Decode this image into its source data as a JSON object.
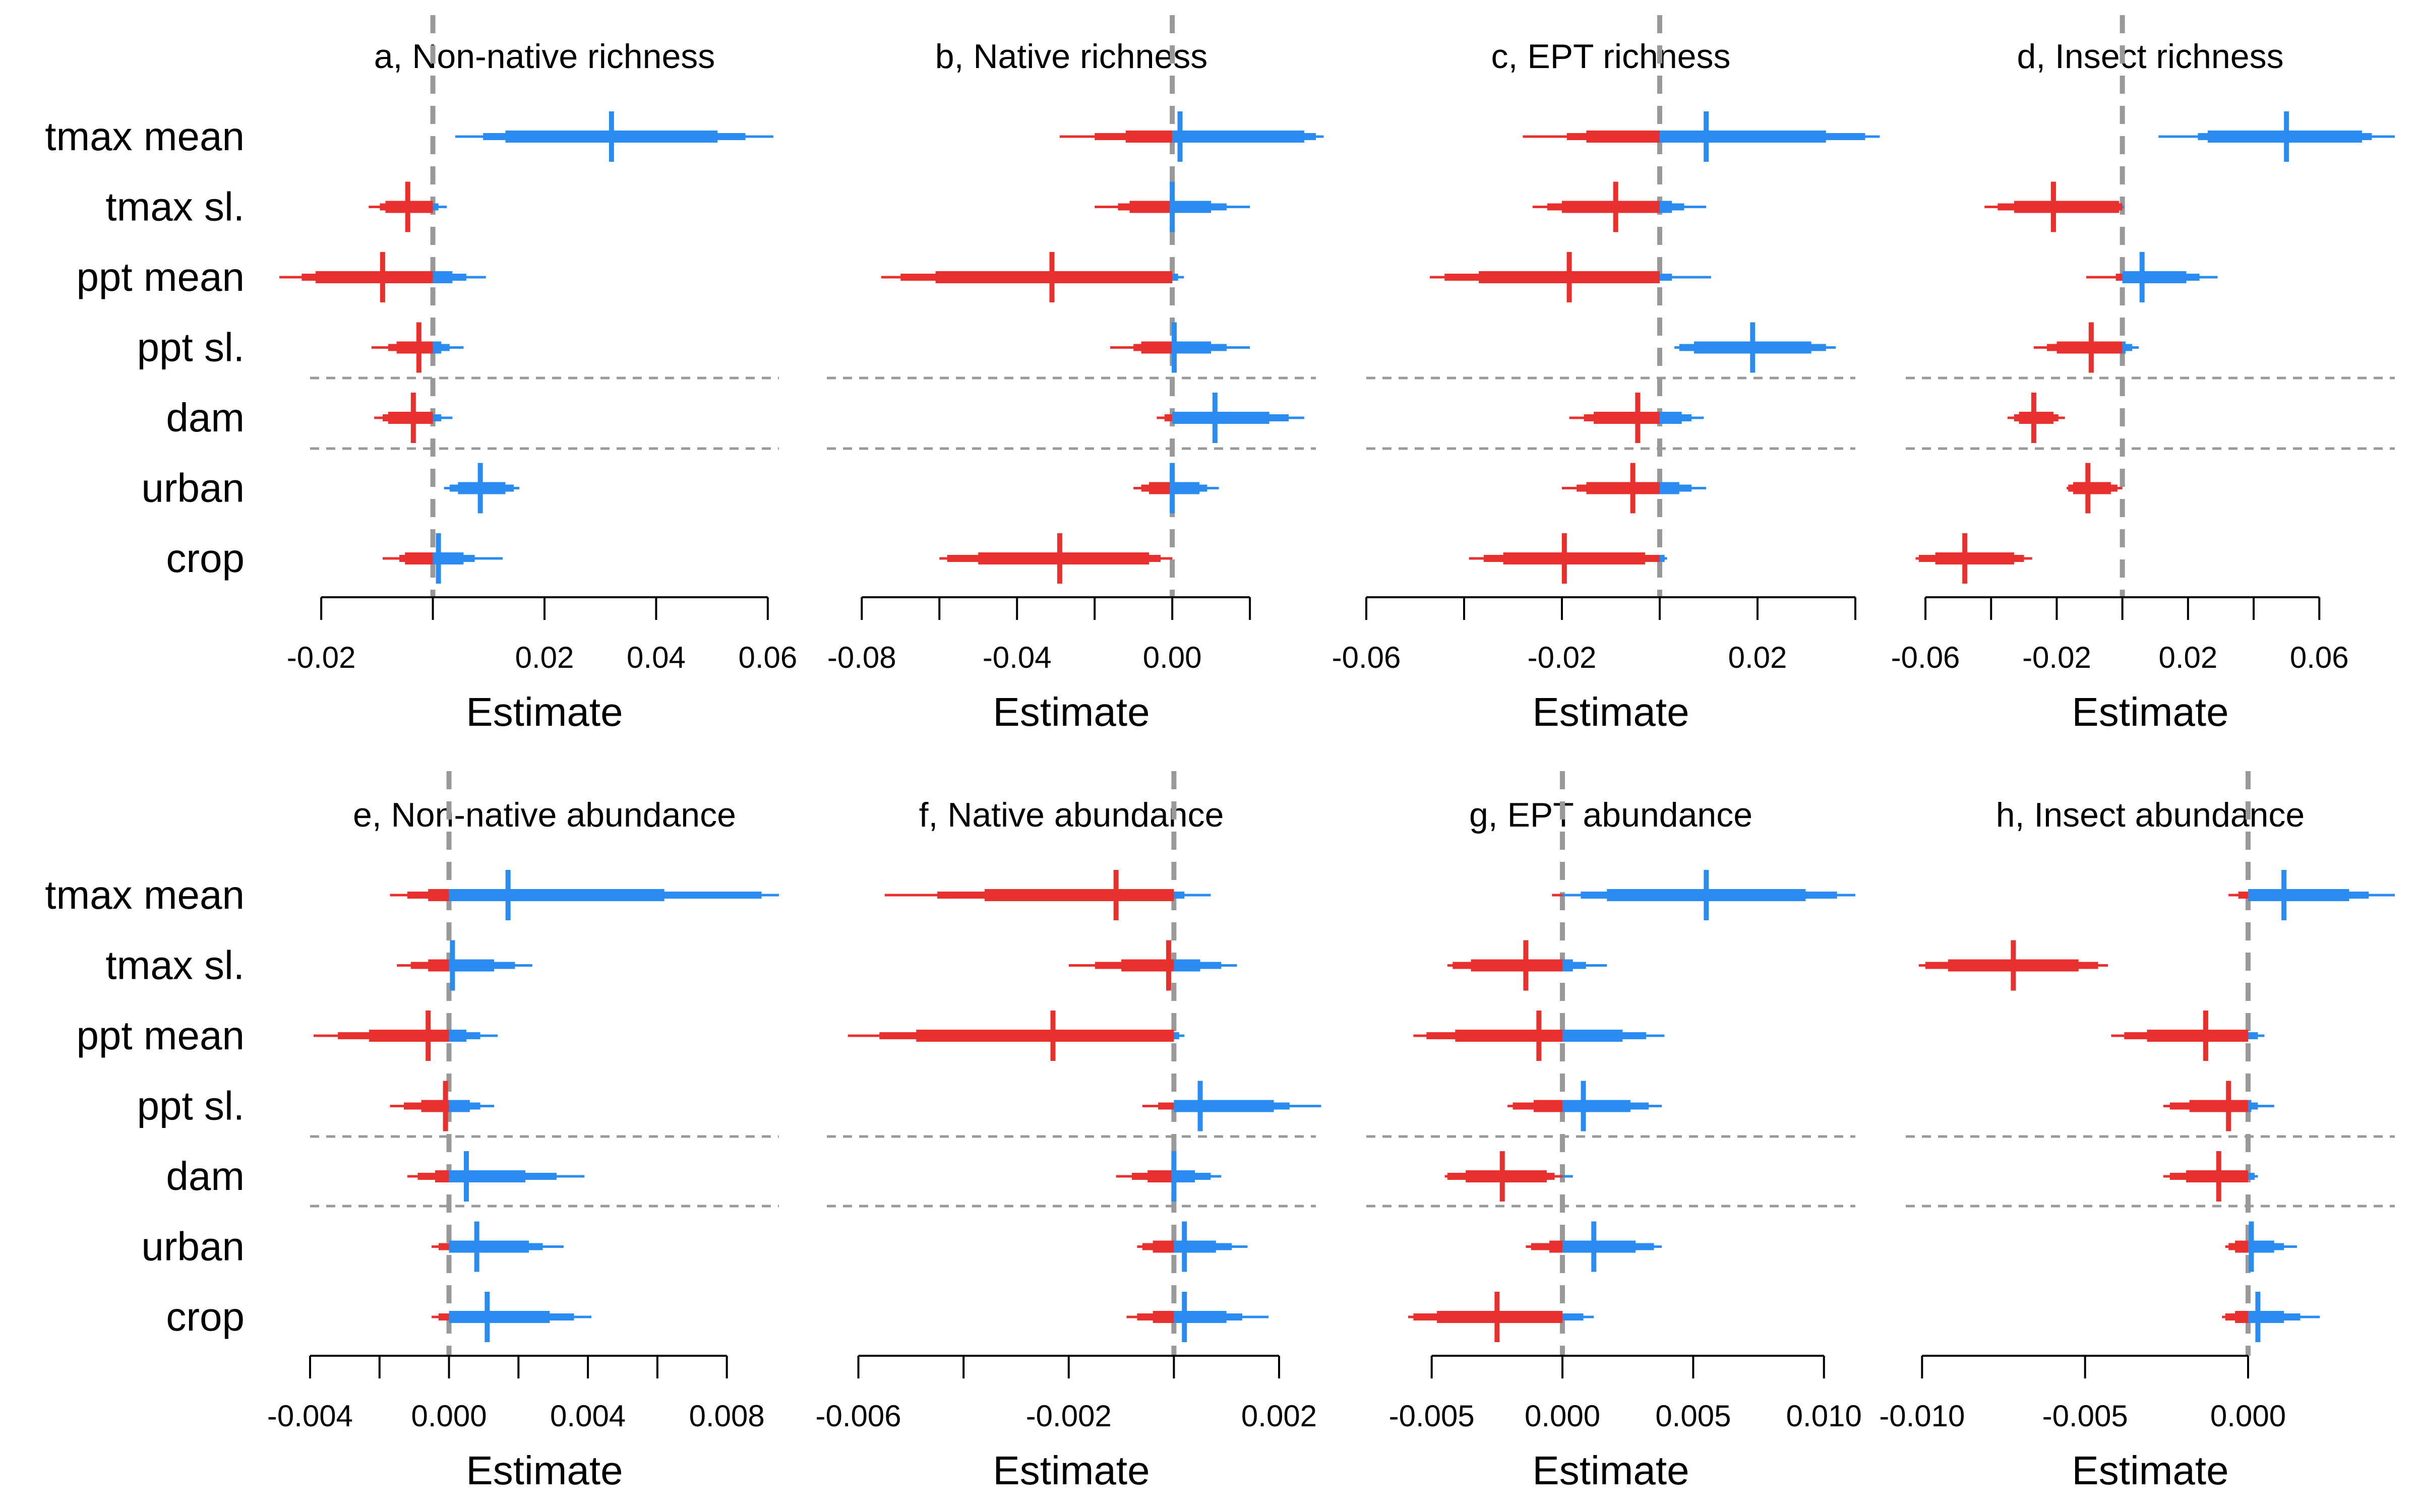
{
  "colors": {
    "negative": "#E8302E",
    "positive": "#2A8CF0",
    "zero_line": "#999999",
    "separator": "#999999",
    "axis": "#000000"
  },
  "chart_data": [
    {
      "type": "interval",
      "title": "a, Non-native richness",
      "xlabel": "Estimate",
      "xlim": [
        -0.022,
        0.062
      ],
      "ticks": [
        -0.02,
        0,
        0.02,
        0.04,
        0.06
      ],
      "tick_labels": [
        "-0.02",
        "",
        "0.02",
        "0.04",
        "0.06"
      ],
      "categories": [
        "tmax mean",
        "tmax sl.",
        "ppt mean",
        "ppt sl.",
        "dam",
        "urban",
        "crop"
      ],
      "estimates": [
        {
          "median": 0.032,
          "inner": [
            0.013,
            0.051
          ],
          "mid": [
            0.009,
            0.056
          ],
          "outer": [
            0.004,
            0.061
          ]
        },
        {
          "median": -0.0045,
          "inner": [
            -0.0085,
            0.0
          ],
          "mid": [
            -0.0095,
            0.001
          ],
          "outer": [
            -0.0115,
            0.0025
          ]
        },
        {
          "median": -0.009,
          "inner": [
            -0.021,
            0.0035
          ],
          "mid": [
            -0.0235,
            0.006
          ],
          "outer": [
            -0.0275,
            0.0095
          ]
        },
        {
          "median": -0.0025,
          "inner": [
            -0.0065,
            0.0015
          ],
          "mid": [
            -0.008,
            0.003
          ],
          "outer": [
            -0.011,
            0.0055
          ]
        },
        {
          "median": -0.0035,
          "inner": [
            -0.008,
            0.0
          ],
          "mid": [
            -0.009,
            0.0015
          ],
          "outer": [
            -0.0105,
            0.0035
          ]
        },
        {
          "median": 0.0085,
          "inner": [
            0.0045,
            0.013
          ],
          "mid": [
            0.003,
            0.0145
          ],
          "outer": [
            0.002,
            0.0155
          ]
        },
        {
          "median": 0.001,
          "inner": [
            -0.005,
            0.0055
          ],
          "mid": [
            -0.006,
            0.0075
          ],
          "outer": [
            -0.009,
            0.0125
          ]
        }
      ]
    },
    {
      "type": "interval",
      "title": "b, Native richness",
      "xlabel": "Estimate",
      "xlim": [
        -0.089,
        0.037
      ],
      "ticks": [
        -0.08,
        -0.06,
        -0.04,
        -0.02,
        0,
        0.02
      ],
      "tick_labels": [
        "-0.08",
        "",
        "-0.04",
        "",
        "0.00",
        ""
      ],
      "categories": [
        "tmax mean",
        "tmax sl.",
        "ppt mean",
        "ppt sl.",
        "dam",
        "urban",
        "crop"
      ],
      "estimates": [
        {
          "median": 0.002,
          "inner": [
            -0.012,
            0.034
          ],
          "mid": [
            -0.02,
            0.037
          ],
          "outer": [
            -0.029,
            0.039
          ]
        },
        {
          "median": 0.0,
          "inner": [
            -0.011,
            0.01
          ],
          "mid": [
            -0.014,
            0.014
          ],
          "outer": [
            -0.02,
            0.02
          ]
        },
        {
          "median": -0.031,
          "inner": [
            -0.061,
            0.0
          ],
          "mid": [
            -0.07,
            0.0015
          ],
          "outer": [
            -0.075,
            0.003
          ]
        },
        {
          "median": 0.0005,
          "inner": [
            -0.008,
            0.01
          ],
          "mid": [
            -0.01,
            0.014
          ],
          "outer": [
            -0.016,
            0.02
          ]
        },
        {
          "median": 0.011,
          "inner": [
            0.0,
            0.025
          ],
          "mid": [
            -0.002,
            0.03
          ],
          "outer": [
            -0.004,
            0.034
          ]
        },
        {
          "median": 0.0,
          "inner": [
            -0.006,
            0.007
          ],
          "mid": [
            -0.008,
            0.009
          ],
          "outer": [
            -0.01,
            0.012
          ]
        },
        {
          "median": -0.029,
          "inner": [
            -0.05,
            -0.006
          ],
          "mid": [
            -0.058,
            -0.003
          ],
          "outer": [
            -0.06,
            0.0
          ]
        }
      ]
    },
    {
      "type": "interval",
      "title": "c, EPT richness",
      "xlabel": "Estimate",
      "xlim": [
        -0.06,
        0.04
      ],
      "ticks": [
        -0.06,
        -0.04,
        -0.02,
        0,
        0.02,
        0.04
      ],
      "tick_labels": [
        "-0.06",
        "",
        "-0.02",
        "",
        "0.02",
        ""
      ],
      "categories": [
        "tmax mean",
        "tmax sl.",
        "ppt mean",
        "ppt sl.",
        "dam",
        "urban",
        "crop"
      ],
      "estimates": [
        {
          "median": 0.0095,
          "inner": [
            -0.015,
            0.034
          ],
          "mid": [
            -0.019,
            0.042
          ],
          "outer": [
            -0.028,
            0.045
          ]
        },
        {
          "median": -0.009,
          "inner": [
            -0.02,
            0.0025
          ],
          "mid": [
            -0.023,
            0.005
          ],
          "outer": [
            -0.026,
            0.0095
          ]
        },
        {
          "median": -0.0185,
          "inner": [
            -0.037,
            0.0
          ],
          "mid": [
            -0.044,
            0.0025
          ],
          "outer": [
            -0.047,
            0.0105
          ]
        },
        {
          "median": 0.019,
          "inner": [
            0.007,
            0.031
          ],
          "mid": [
            0.004,
            0.034
          ],
          "outer": [
            0.003,
            0.036
          ]
        },
        {
          "median": -0.0045,
          "inner": [
            -0.0135,
            0.0045
          ],
          "mid": [
            -0.0155,
            0.0065
          ],
          "outer": [
            -0.0185,
            0.009
          ]
        },
        {
          "median": -0.0055,
          "inner": [
            -0.015,
            0.004
          ],
          "mid": [
            -0.017,
            0.0065
          ],
          "outer": [
            -0.02,
            0.0095
          ]
        },
        {
          "median": -0.0195,
          "inner": [
            -0.032,
            -0.003
          ],
          "mid": [
            -0.036,
            0.001
          ],
          "outer": [
            -0.039,
            0.0015
          ]
        }
      ]
    },
    {
      "type": "interval",
      "title": "d, Insect richness",
      "xlabel": "Estimate",
      "xlim": [
        -0.066,
        0.083
      ],
      "ticks": [
        -0.06,
        -0.04,
        -0.02,
        0,
        0.02,
        0.04,
        0.06
      ],
      "tick_labels": [
        "-0.06",
        "",
        "-0.02",
        "",
        "0.02",
        "",
        "0.06"
      ],
      "categories": [
        "tmax mean",
        "tmax sl.",
        "ppt mean",
        "ppt sl.",
        "dam",
        "urban",
        "crop"
      ],
      "estimates": [
        {
          "median": 0.05,
          "inner": [
            0.026,
            0.073
          ],
          "mid": [
            0.023,
            0.076
          ],
          "outer": [
            0.011,
            0.083
          ]
        },
        {
          "median": -0.021,
          "inner": [
            -0.033,
            -0.001
          ],
          "mid": [
            -0.038,
            0.0
          ],
          "outer": [
            -0.042,
            0.0005
          ]
        },
        {
          "median": 0.006,
          "inner": [
            0.0,
            0.0195
          ],
          "mid": [
            -0.002,
            0.0235
          ],
          "outer": [
            -0.011,
            0.029
          ]
        },
        {
          "median": -0.0095,
          "inner": [
            -0.02,
            0.001
          ],
          "mid": [
            -0.023,
            0.003
          ],
          "outer": [
            -0.027,
            0.005
          ]
        },
        {
          "median": -0.027,
          "inner": [
            -0.0315,
            -0.021
          ],
          "mid": [
            -0.033,
            -0.0195
          ],
          "outer": [
            -0.035,
            -0.0175
          ]
        },
        {
          "median": -0.0105,
          "inner": [
            -0.015,
            -0.0035
          ],
          "mid": [
            -0.0165,
            -0.0015
          ],
          "outer": [
            -0.017,
            0.0
          ]
        },
        {
          "median": -0.048,
          "inner": [
            -0.057,
            -0.033
          ],
          "mid": [
            -0.062,
            -0.03
          ],
          "outer": [
            -0.063,
            -0.0275
          ]
        }
      ]
    },
    {
      "type": "interval",
      "title": "e, Non-native abundance",
      "xlabel": "Estimate",
      "xlim": [
        -0.004,
        0.0095
      ],
      "ticks": [
        -0.004,
        -0.002,
        0,
        0.002,
        0.004,
        0.006,
        0.008
      ],
      "tick_labels": [
        "-0.004",
        "",
        "0.000",
        "",
        "0.004",
        "",
        "0.008"
      ],
      "categories": [
        "tmax mean",
        "tmax sl.",
        "ppt mean",
        "ppt sl.",
        "dam",
        "urban",
        "crop"
      ],
      "estimates": [
        {
          "median": 0.0017,
          "inner": [
            -0.0006,
            0.0062
          ],
          "mid": [
            -0.0012,
            0.009
          ],
          "outer": [
            -0.0017,
            0.0095
          ]
        },
        {
          "median": 0.0001,
          "inner": [
            -0.0006,
            0.0013
          ],
          "mid": [
            -0.0011,
            0.0019
          ],
          "outer": [
            -0.0015,
            0.0024
          ]
        },
        {
          "median": -0.0006,
          "inner": [
            -0.0023,
            0.0005
          ],
          "mid": [
            -0.0032,
            0.0009
          ],
          "outer": [
            -0.0039,
            0.0014
          ]
        },
        {
          "median": -0.0001,
          "inner": [
            -0.0008,
            0.0006
          ],
          "mid": [
            -0.0013,
            0.0009
          ],
          "outer": [
            -0.0017,
            0.0013
          ]
        },
        {
          "median": 0.0005,
          "inner": [
            -0.0004,
            0.0022
          ],
          "mid": [
            -0.0009,
            0.0031
          ],
          "outer": [
            -0.0012,
            0.0039
          ]
        },
        {
          "median": 0.0008,
          "inner": [
            0.0,
            0.0023
          ],
          "mid": [
            -0.0003,
            0.0027
          ],
          "outer": [
            -0.0005,
            0.0033
          ]
        },
        {
          "median": 0.0011,
          "inner": [
            0.0,
            0.0029
          ],
          "mid": [
            -0.0003,
            0.0036
          ],
          "outer": [
            -0.0005,
            0.0041
          ]
        }
      ]
    },
    {
      "type": "interval",
      "title": "f, Native abundance",
      "xlabel": "Estimate",
      "xlim": [
        -0.0066,
        0.0027
      ],
      "ticks": [
        -0.006,
        -0.004,
        -0.002,
        0,
        0.002
      ],
      "tick_labels": [
        "-0.006",
        "",
        "-0.002",
        "",
        "0.002"
      ],
      "categories": [
        "tmax mean",
        "tmax sl.",
        "ppt mean",
        "ppt sl.",
        "dam",
        "urban",
        "crop"
      ],
      "estimates": [
        {
          "median": -0.0011,
          "inner": [
            -0.0036,
            0.0
          ],
          "mid": [
            -0.0045,
            0.0002
          ],
          "outer": [
            -0.0055,
            0.0007
          ]
        },
        {
          "median": -0.0001,
          "inner": [
            -0.001,
            0.0005
          ],
          "mid": [
            -0.0015,
            0.0009
          ],
          "outer": [
            -0.002,
            0.0012
          ]
        },
        {
          "median": -0.0023,
          "inner": [
            -0.0049,
            0.0
          ],
          "mid": [
            -0.0056,
            0.0001
          ],
          "outer": [
            -0.0062,
            0.0002
          ]
        },
        {
          "median": 0.0005,
          "inner": [
            0.0,
            0.0019
          ],
          "mid": [
            -0.0003,
            0.0022
          ],
          "outer": [
            -0.0006,
            0.0028
          ]
        },
        {
          "median": 0.0,
          "inner": [
            -0.0005,
            0.0004
          ],
          "mid": [
            -0.0008,
            0.0007
          ],
          "outer": [
            -0.0011,
            0.0009
          ]
        },
        {
          "median": 0.0002,
          "inner": [
            -0.0004,
            0.0008
          ],
          "mid": [
            -0.0006,
            0.0011
          ],
          "outer": [
            -0.0007,
            0.0014
          ]
        },
        {
          "median": 0.0002,
          "inner": [
            -0.0004,
            0.001
          ],
          "mid": [
            -0.0007,
            0.0013
          ],
          "outer": [
            -0.0009,
            0.0018
          ]
        }
      ]
    },
    {
      "type": "interval",
      "title": "g, EPT abundance",
      "xlabel": "Estimate",
      "xlim": [
        -0.0075,
        0.0112
      ],
      "ticks": [
        -0.005,
        0,
        0.005,
        0.01
      ],
      "tick_labels": [
        "-0.005",
        "0.000",
        "0.005",
        "0.010"
      ],
      "categories": [
        "tmax mean",
        "tmax sl.",
        "ppt mean",
        "ppt sl.",
        "dam",
        "urban",
        "crop"
      ],
      "estimates": [
        {
          "median": 0.0055,
          "inner": [
            0.0017,
            0.0093
          ],
          "mid": [
            0.0007,
            0.0105
          ],
          "outer": [
            -0.0004,
            0.0112
          ]
        },
        {
          "median": -0.0014,
          "inner": [
            -0.0035,
            0.0004
          ],
          "mid": [
            -0.0042,
            0.0009
          ],
          "outer": [
            -0.0044,
            0.0017
          ]
        },
        {
          "median": -0.0009,
          "inner": [
            -0.0041,
            0.0023
          ],
          "mid": [
            -0.0052,
            0.0032
          ],
          "outer": [
            -0.0057,
            0.0039
          ]
        },
        {
          "median": 0.0008,
          "inner": [
            -0.0011,
            0.0026
          ],
          "mid": [
            -0.0019,
            0.0033
          ],
          "outer": [
            -0.0021,
            0.0038
          ]
        },
        {
          "median": -0.0023,
          "inner": [
            -0.0037,
            -0.0006
          ],
          "mid": [
            -0.0044,
            -0.0003
          ],
          "outer": [
            -0.0045,
            0.0004
          ]
        },
        {
          "median": 0.0012,
          "inner": [
            -0.0005,
            0.0028
          ],
          "mid": [
            -0.0012,
            0.0035
          ],
          "outer": [
            -0.0014,
            0.0038
          ]
        },
        {
          "median": -0.0025,
          "inner": [
            -0.0048,
            0.0
          ],
          "mid": [
            -0.0057,
            0.0008
          ],
          "outer": [
            -0.0059,
            0.0012
          ]
        }
      ]
    },
    {
      "type": "interval",
      "title": "h, Insect abundance",
      "xlabel": "Estimate",
      "xlim": [
        -0.0105,
        0.0045
      ],
      "ticks": [
        -0.01,
        -0.005,
        0
      ],
      "tick_labels": [
        "-0.010",
        "-0.005",
        "0.000"
      ],
      "categories": [
        "tmax mean",
        "tmax sl.",
        "ppt mean",
        "ppt sl.",
        "dam",
        "urban",
        "crop"
      ],
      "estimates": [
        {
          "median": 0.0011,
          "inner": [
            0.0,
            0.0031
          ],
          "mid": [
            -0.0003,
            0.0037
          ],
          "outer": [
            -0.0006,
            0.0045
          ]
        },
        {
          "median": -0.0072,
          "inner": [
            -0.0092,
            -0.0052
          ],
          "mid": [
            -0.0099,
            -0.0046
          ],
          "outer": [
            -0.0101,
            -0.0043
          ]
        },
        {
          "median": -0.0013,
          "inner": [
            -0.0031,
            0.0
          ],
          "mid": [
            -0.0038,
            0.0003
          ],
          "outer": [
            -0.0042,
            0.0005
          ]
        },
        {
          "median": -0.0006,
          "inner": [
            -0.0018,
            0.0001
          ],
          "mid": [
            -0.0024,
            0.0003
          ],
          "outer": [
            -0.0026,
            0.0008
          ]
        },
        {
          "median": -0.0009,
          "inner": [
            -0.0019,
            0.0
          ],
          "mid": [
            -0.0024,
            0.0002
          ],
          "outer": [
            -0.0026,
            0.0003
          ]
        },
        {
          "median": 0.0001,
          "inner": [
            -0.0004,
            0.0008
          ],
          "mid": [
            -0.0006,
            0.0011
          ],
          "outer": [
            -0.0007,
            0.0015
          ]
        },
        {
          "median": 0.0003,
          "inner": [
            -0.0004,
            0.0011
          ],
          "mid": [
            -0.0007,
            0.0016
          ],
          "outer": [
            -0.0008,
            0.0022
          ]
        }
      ]
    }
  ]
}
